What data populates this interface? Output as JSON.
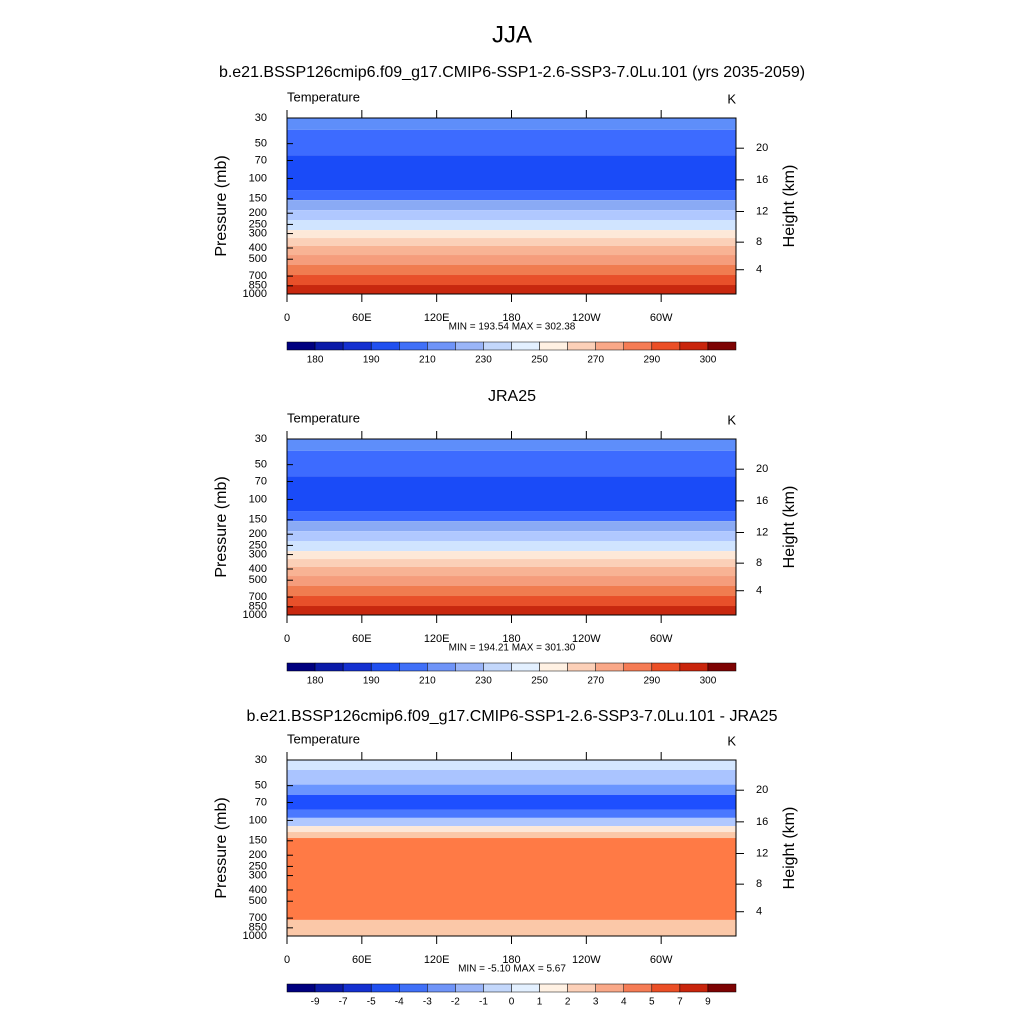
{
  "page_title": "JJA",
  "chart_data": [
    {
      "type": "contour",
      "title": "b.e21.BSSP126cmip6.f09_g17.CMIP6-SSP1-2.6-SSP3-7.0Lu.101 (yrs 2035-2059)",
      "left_label": "Temperature",
      "right_label": "K",
      "ylabel": "Pressure (mb)",
      "y2label": "Height (km)",
      "stats": "MIN = 193.54  MAX = 302.38",
      "xlim": [
        0,
        360
      ],
      "xticks": [
        0,
        {
          "value": 60,
          "label": "60E"
        },
        {
          "value": 120,
          "label": "120E"
        },
        180,
        {
          "value": 240,
          "label": "120W"
        },
        {
          "value": 300,
          "label": "60W"
        }
      ],
      "ylim": [
        1000,
        30
      ],
      "log": true,
      "yticks": [
        30,
        50,
        70,
        100,
        150,
        200,
        250,
        300,
        400,
        500,
        700,
        850,
        1000
      ],
      "y2ticks": [
        4,
        8,
        12,
        16,
        20
      ],
      "field": {
        "pressure": [
          30,
          38,
          63,
          126,
          154,
          188,
          229,
          280,
          328,
          384,
          460,
          561,
          685,
          836,
          1000
        ],
        "colors": [
          "#5e8efa",
          "#3d6bff",
          "#1a4bf8",
          "#3d6bff",
          "#8aaaf5",
          "#b0c8ff",
          "#d0e4ff",
          "#fde8d8",
          "#fbd0b8",
          "#f8b394",
          "#f59d7c",
          "#f07c50",
          "#e8502a",
          "#c8280f"
        ]
      },
      "colorbar": {
        "colors": [
          "#00007f",
          "#0a1aa8",
          "#1430d0",
          "#2050f0",
          "#4070f8",
          "#6f94f8",
          "#9ab5f8",
          "#c3d7fb",
          "#e3f0ff",
          "#fff1e3",
          "#fcd0b8",
          "#f9a888",
          "#f57c55",
          "#eb4f26",
          "#c9250c",
          "#7d0303"
        ],
        "labels": [
          "180",
          null,
          "190",
          null,
          "210",
          null,
          "230",
          null,
          "250",
          null,
          "270",
          null,
          "290",
          null,
          "300"
        ]
      }
    },
    {
      "type": "contour",
      "title": "JRA25",
      "left_label": "Temperature",
      "right_label": "K",
      "ylabel": "Pressure (mb)",
      "y2label": "Height (km)",
      "stats": "MIN = 194.21  MAX = 301.30",
      "xlim": [
        0,
        360
      ],
      "xticks": [
        0,
        {
          "value": 60,
          "label": "60E"
        },
        {
          "value": 120,
          "label": "120E"
        },
        180,
        {
          "value": 240,
          "label": "120W"
        },
        {
          "value": 300,
          "label": "60W"
        }
      ],
      "ylim": [
        1000,
        30
      ],
      "log": true,
      "yticks": [
        30,
        50,
        70,
        100,
        150,
        200,
        250,
        300,
        400,
        500,
        700,
        850,
        1000
      ],
      "y2ticks": [
        4,
        8,
        12,
        16,
        20
      ],
      "field": {
        "pressure": [
          30,
          38,
          63,
          126,
          154,
          188,
          229,
          280,
          328,
          384,
          460,
          561,
          685,
          836,
          1000
        ],
        "colors": [
          "#5e8efa",
          "#3d6bff",
          "#1a4bf8",
          "#3d6bff",
          "#8aaaf5",
          "#b0c8ff",
          "#d0e4ff",
          "#fde8d8",
          "#fbd0b8",
          "#f8b394",
          "#f59d7c",
          "#f07c50",
          "#e8502a",
          "#c8280f"
        ]
      },
      "colorbar": {
        "colors": [
          "#00007f",
          "#0a1aa8",
          "#1430d0",
          "#2050f0",
          "#4070f8",
          "#6f94f8",
          "#9ab5f8",
          "#c3d7fb",
          "#e3f0ff",
          "#fff1e3",
          "#fcd0b8",
          "#f9a888",
          "#f57c55",
          "#eb4f26",
          "#c9250c",
          "#7d0303"
        ],
        "labels": [
          "180",
          null,
          "190",
          null,
          "210",
          null,
          "230",
          null,
          "250",
          null,
          "270",
          null,
          "290",
          null,
          "300"
        ]
      }
    },
    {
      "type": "contour",
      "title": "b.e21.BSSP126cmip6.f09_g17.CMIP6-SSP1-2.6-SSP3-7.0Lu.101 - JRA25",
      "left_label": "Temperature",
      "right_label": "K",
      "ylabel": "Pressure (mb)",
      "y2label": "Height (km)",
      "stats": "MIN =  -5.10  MAX =   5.67",
      "xlim": [
        0,
        360
      ],
      "xticks": [
        0,
        {
          "value": 60,
          "label": "60E"
        },
        {
          "value": 120,
          "label": "120E"
        },
        180,
        {
          "value": 240,
          "label": "120W"
        },
        {
          "value": 300,
          "label": "60W"
        }
      ],
      "ylim": [
        1000,
        30
      ],
      "log": true,
      "yticks": [
        30,
        50,
        70,
        100,
        150,
        200,
        250,
        300,
        400,
        500,
        700,
        850,
        1000
      ],
      "y2ticks": [
        4,
        8,
        12,
        16,
        20
      ],
      "field": {
        "pressure": [
          30,
          36.6,
          49,
          60,
          81,
          95,
          112,
          126,
          142,
          726,
          1000
        ],
        "colors": [
          "#d4e6ff",
          "#aac4ff",
          "#6a95ff",
          "#1e4fff",
          "#4a78ff",
          "#b0c8ff",
          "#fde8d8",
          "#fbc8a8",
          "#ff7a45",
          "#fbc8a8"
        ]
      },
      "colorbar": {
        "colors": [
          "#00007f",
          "#0a1aa8",
          "#1430d0",
          "#2050f0",
          "#4070f8",
          "#6f94f8",
          "#9ab5f8",
          "#c3d7fb",
          "#e3f0ff",
          "#fff1e3",
          "#fcd0b8",
          "#f9a888",
          "#f57c55",
          "#eb4f26",
          "#c9250c",
          "#7d0303"
        ],
        "labels": [
          "-9",
          "-7",
          "-5",
          "-4",
          "-3",
          "-2",
          "-1",
          "0",
          "1",
          "2",
          "3",
          "4",
          "5",
          "7",
          "9"
        ]
      }
    }
  ]
}
